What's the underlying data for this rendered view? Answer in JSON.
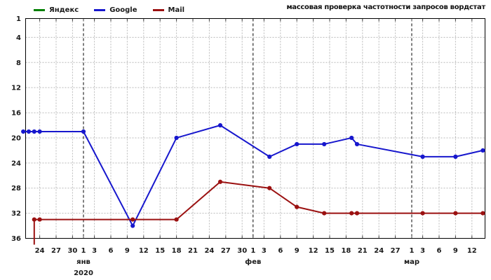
{
  "title": "массовая проверка частотности запросов вордстат",
  "chart_data": {
    "type": "line",
    "title": "массовая проверка частотности запросов вордстат",
    "legend_position": "top-left",
    "y_axis": {
      "ticks": [
        1,
        4,
        8,
        12,
        16,
        20,
        24,
        28,
        32,
        36
      ],
      "min": 1,
      "max": 36,
      "inverted": true,
      "grid": true
    },
    "x_axis": {
      "unit": "дата",
      "range": [
        "2019-12-21",
        "2020-03-15"
      ],
      "ticks": [
        {
          "day": -8,
          "label": "24"
        },
        {
          "day": -5,
          "label": "27"
        },
        {
          "day": -2,
          "label": "30"
        },
        {
          "day": 0,
          "label": "1",
          "month_start": true
        },
        {
          "day": 2,
          "label": "3"
        },
        {
          "day": 5,
          "label": "6"
        },
        {
          "day": 8,
          "label": "9"
        },
        {
          "day": 11,
          "label": "12"
        },
        {
          "day": 14,
          "label": "15"
        },
        {
          "day": 17,
          "label": "18"
        },
        {
          "day": 20,
          "label": "21"
        },
        {
          "day": 23,
          "label": "24"
        },
        {
          "day": 26,
          "label": "27"
        },
        {
          "day": 29,
          "label": "30"
        },
        {
          "day": 31,
          "label": "1",
          "month_start": true
        },
        {
          "day": 33,
          "label": "3"
        },
        {
          "day": 36,
          "label": "6"
        },
        {
          "day": 39,
          "label": "9"
        },
        {
          "day": 42,
          "label": "12"
        },
        {
          "day": 45,
          "label": "15"
        },
        {
          "day": 48,
          "label": "18"
        },
        {
          "day": 51,
          "label": "21"
        },
        {
          "day": 54,
          "label": "24"
        },
        {
          "day": 57,
          "label": "27"
        },
        {
          "day": 60,
          "label": "1",
          "month_start": true
        },
        {
          "day": 62,
          "label": "3"
        },
        {
          "day": 65,
          "label": "6"
        },
        {
          "day": 68,
          "label": "9"
        },
        {
          "day": 71,
          "label": "12"
        }
      ],
      "month_labels": [
        {
          "day": 0,
          "label": "янв"
        },
        {
          "day": 31,
          "label": "фев"
        },
        {
          "day": 60,
          "label": "мар"
        }
      ],
      "year_label": {
        "day": 0,
        "label": "2020"
      }
    },
    "series": [
      {
        "name": "Яндекс",
        "color": "#008000",
        "points": []
      },
      {
        "name": "Google",
        "color": "#1717cd",
        "points": [
          {
            "date": "2019-12-21",
            "day": -11,
            "value": 19
          },
          {
            "date": "2019-12-22",
            "day": -10,
            "value": 19
          },
          {
            "date": "2019-12-23",
            "day": -9,
            "value": 19
          },
          {
            "date": "2019-12-24",
            "day": -8,
            "value": 19
          },
          {
            "date": "2020-01-01",
            "day": 0,
            "value": 19
          },
          {
            "date": "2020-01-10",
            "day": 9,
            "value": 34
          },
          {
            "date": "2020-01-18",
            "day": 17,
            "value": 20
          },
          {
            "date": "2020-01-26",
            "day": 25,
            "value": 18
          },
          {
            "date": "2020-02-04",
            "day": 34,
            "value": 23
          },
          {
            "date": "2020-02-09",
            "day": 39,
            "value": 21
          },
          {
            "date": "2020-02-14",
            "day": 44,
            "value": 21
          },
          {
            "date": "2020-02-19",
            "day": 49,
            "value": 20
          },
          {
            "date": "2020-02-20",
            "day": 50,
            "value": 21
          },
          {
            "date": "2020-03-03",
            "day": 62,
            "value": 23
          },
          {
            "date": "2020-03-09",
            "day": 68,
            "value": 23
          },
          {
            "date": "2020-03-14",
            "day": 73,
            "value": 22
          }
        ]
      },
      {
        "name": "Mail",
        "color": "#9b1111",
        "points": [
          {
            "date": "2019-12-23",
            "day": -9,
            "value": 37,
            "offscale": true
          },
          {
            "date": "2019-12-23",
            "day": -9,
            "value": 33
          },
          {
            "date": "2019-12-24",
            "day": -8,
            "value": 33
          },
          {
            "date": "2020-01-10",
            "day": 9,
            "value": 33
          },
          {
            "date": "2020-01-18",
            "day": 17,
            "value": 33
          },
          {
            "date": "2020-01-26",
            "day": 25,
            "value": 27
          },
          {
            "date": "2020-02-04",
            "day": 34,
            "value": 28
          },
          {
            "date": "2020-02-09",
            "day": 39,
            "value": 31
          },
          {
            "date": "2020-02-14",
            "day": 44,
            "value": 32
          },
          {
            "date": "2020-02-19",
            "day": 49,
            "value": 32
          },
          {
            "date": "2020-02-20",
            "day": 50,
            "value": 32
          },
          {
            "date": "2020-03-03",
            "day": 62,
            "value": 32
          },
          {
            "date": "2020-03-09",
            "day": 68,
            "value": 32
          },
          {
            "date": "2020-03-14",
            "day": 73,
            "value": 32
          }
        ]
      }
    ]
  }
}
